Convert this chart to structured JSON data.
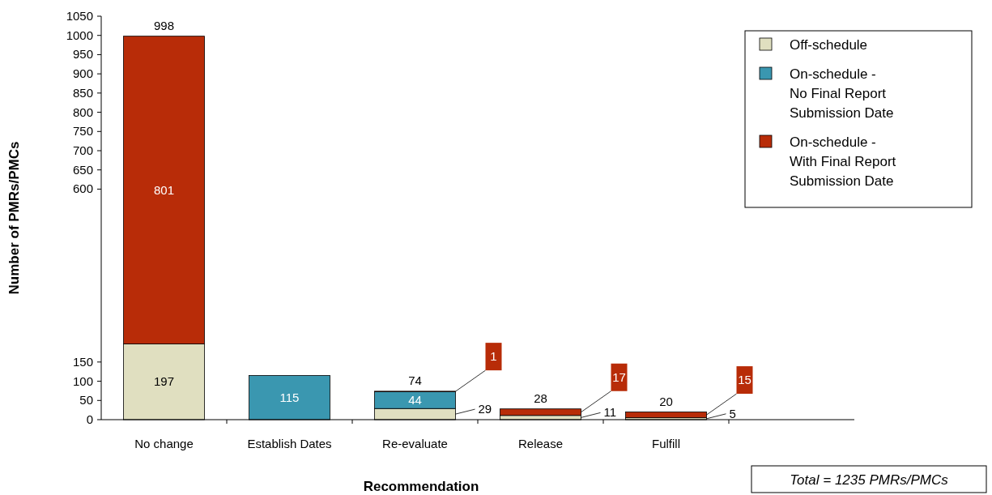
{
  "chart_data": {
    "type": "bar",
    "stacked": true,
    "xlabel": "Recommendation",
    "ylabel": "Number of PMRs/PMCs",
    "categories": [
      "No change",
      "Establish Dates",
      "Re-evaluate",
      "Release",
      "Fulfill"
    ],
    "series": [
      {
        "name": "Off-schedule",
        "color": "#e0dfc0",
        "values": [
          197,
          0,
          29,
          11,
          5
        ],
        "value_labels": [
          "197",
          null,
          "29",
          "11",
          "5"
        ]
      },
      {
        "name": "On-schedule - No Final Report Submission Date",
        "color": "#3a97b0",
        "values": [
          0,
          115,
          44,
          0,
          0
        ],
        "value_labels": [
          null,
          "115",
          "44",
          null,
          null
        ]
      },
      {
        "name": "On-schedule - With Final Report Submission Date",
        "color": "#b82c08",
        "values": [
          801,
          0,
          1,
          17,
          15
        ],
        "value_labels": [
          "801",
          null,
          "1",
          "17",
          "15"
        ]
      }
    ],
    "totals": [
      "998",
      null,
      "74",
      "28",
      "20"
    ],
    "ylim": [
      0,
      1050
    ],
    "yticks": [
      0,
      50,
      100,
      150,
      600,
      650,
      700,
      750,
      800,
      850,
      900,
      950,
      1000,
      1050
    ],
    "grid": false,
    "legend": "top right",
    "annotations": [
      "Total = 1235 PMRs/PMCs"
    ]
  }
}
